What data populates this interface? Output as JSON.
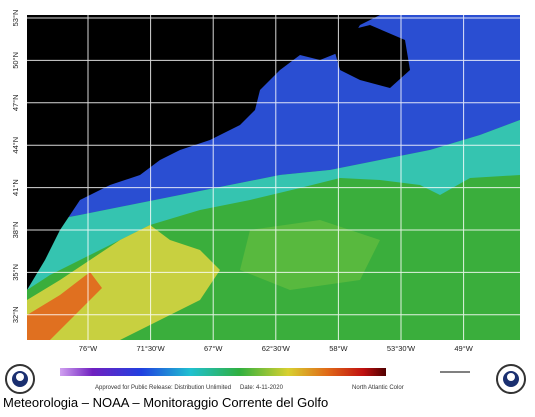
{
  "map": {
    "lat_labels": [
      "53°N",
      "50°N",
      "47°N",
      "44°N",
      "41°N",
      "38°N",
      "35°N",
      "32°N"
    ],
    "lon_labels": [
      "76°W",
      "71°30'W",
      "67°W",
      "62°30'W",
      "58°W",
      "53°30'W",
      "49°W"
    ],
    "footer": {
      "release": "Approved for Public Release: Distribution Unlimited",
      "date": "Date: 4-11-2020",
      "product": "North Atlantic Color"
    }
  },
  "caption": "Meteorologia – NOAA – Monitoraggio Corrente del Golfo"
}
